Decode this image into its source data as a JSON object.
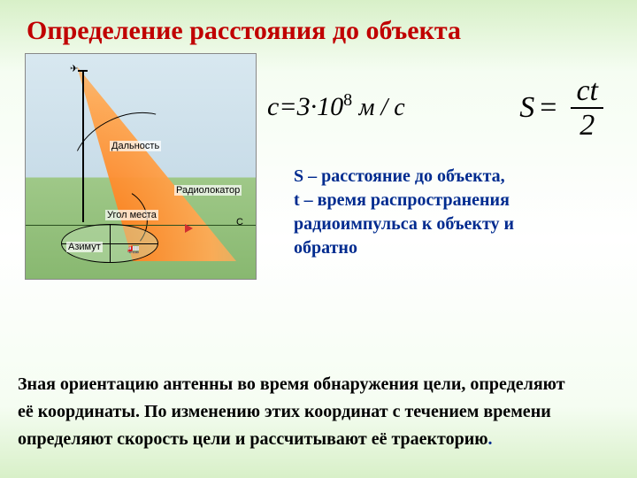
{
  "title": "Определение расстояния до объекта",
  "diagram": {
    "labels": {
      "dalnost": "Дальность",
      "radiolokator": "Радиолокатор",
      "ugol_mesta": "Угол места",
      "azimut": "Азимут",
      "c_mark": "С"
    },
    "beam_gradient": [
      "#ff6a00",
      "#ffaa55"
    ],
    "sky_color": "#c8dce8",
    "ground_color": "#88b870"
  },
  "formula_c": {
    "lhs": "с",
    "equals": "=",
    "coeff": "3·10",
    "exp": "8",
    "unit": "м / с",
    "fontsize": 30
  },
  "formula_s": {
    "lhs": "S",
    "equals": "=",
    "num": "ct",
    "den": "2",
    "fontsize": 34
  },
  "defs": {
    "s": "S – расстояние до объекта,",
    "t1": "t  – время распространения",
    "t2": "радиоимпульса         к объекту и",
    "t3": "обратно",
    "color": "#002b8f",
    "fontsize": 20
  },
  "paragraph": {
    "l1": "Зная ориентацию антенны во время обнаружения цели, определяют",
    "l2": " её координаты. По изменению этих координат с течением времени",
    "l3": "определяют  скорость цели и рассчитывают её траекторию",
    "dot": ".",
    "fontsize": 20
  },
  "colors": {
    "title": "#c00000",
    "accent": "#002b8f",
    "bg_top": "#d8f0c8",
    "bg_mid": "#ffffff"
  }
}
